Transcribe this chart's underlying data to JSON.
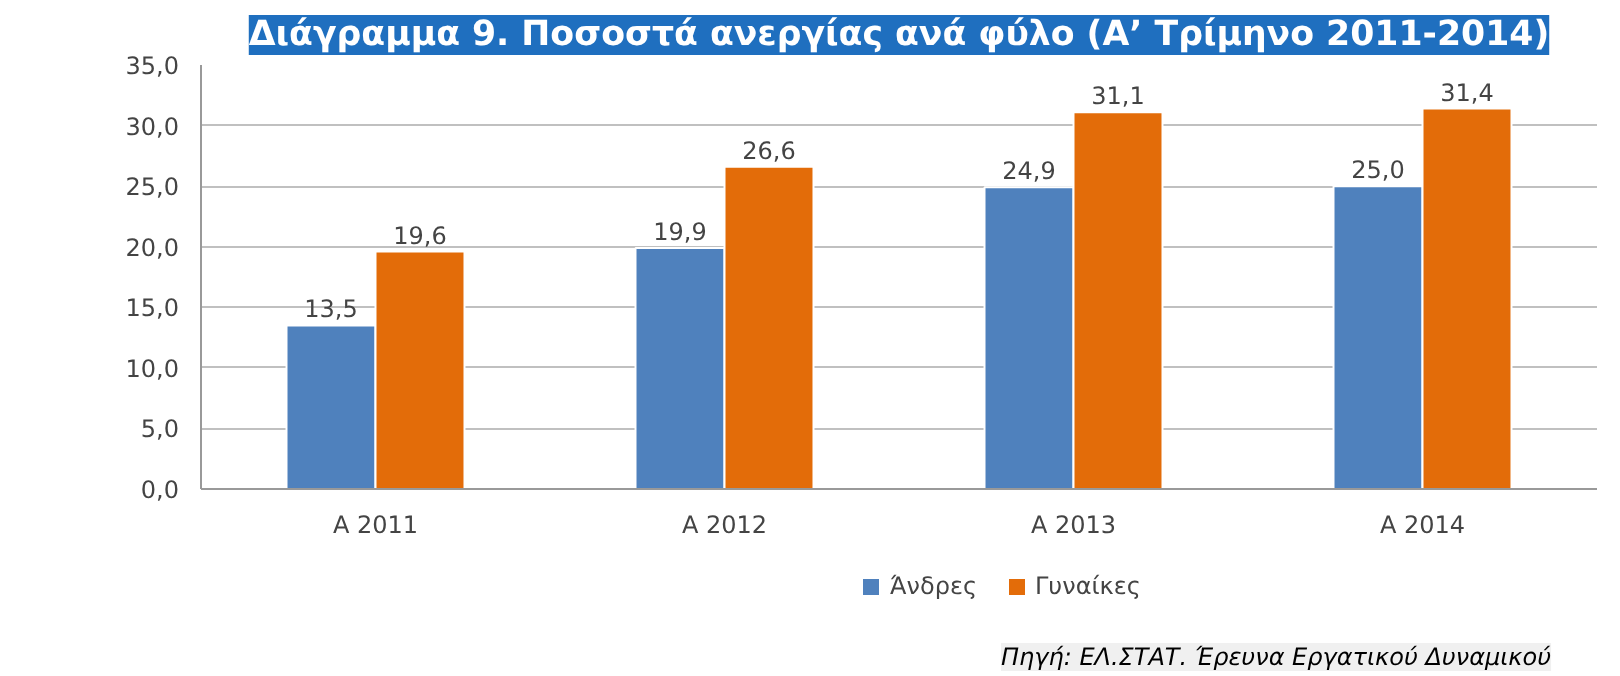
{
  "chart_data": {
    "type": "bar",
    "title": "Διάγραμμα 9. Ποσοστά ανεργίας ανά φύλο (Α’ Τρίμηνο 2011-2014)",
    "categories": [
      "Α 2011",
      "Α 2012",
      "Α 2013",
      "Α 2014"
    ],
    "series": [
      {
        "name": "Άνδρες",
        "color": "#4f81bd",
        "values": [
          13.5,
          19.9,
          24.9,
          25.0
        ],
        "value_labels": [
          "13,5",
          "19,9",
          "24,9",
          "25,0"
        ]
      },
      {
        "name": "Γυναίκες",
        "color": "#e36c09",
        "values": [
          19.6,
          26.6,
          31.1,
          31.4
        ],
        "value_labels": [
          "19,6",
          "26,6",
          "31,1",
          "31,4"
        ]
      }
    ],
    "ylim": [
      0,
      35
    ],
    "yticks": [
      {
        "value": 0,
        "label": "0,0"
      },
      {
        "value": 5,
        "label": "5,0"
      },
      {
        "value": 10,
        "label": "10,0"
      },
      {
        "value": 15,
        "label": "15,0"
      },
      {
        "value": 20,
        "label": "20,0"
      },
      {
        "value": 25,
        "label": "25,0"
      },
      {
        "value": 30,
        "label": "30,0"
      },
      {
        "value": 35,
        "label": "35,0"
      }
    ],
    "grid": "y",
    "legend": "bottom",
    "annotations": [
      "Πηγή: ΕΛ.ΣΤΑΤ. Έρευνα Εργατικού Δυναμικού"
    ]
  }
}
